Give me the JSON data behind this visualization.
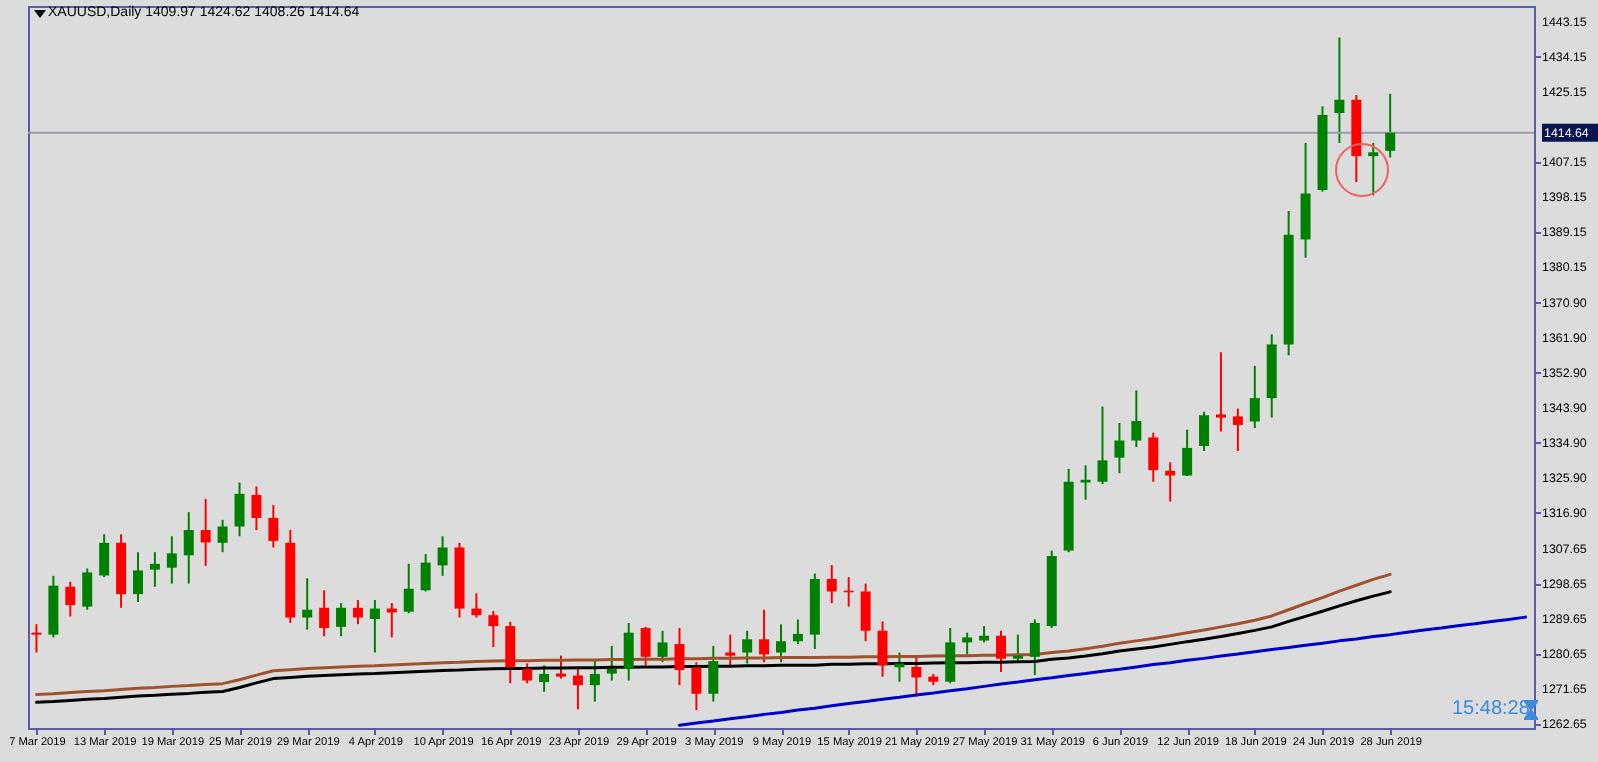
{
  "chart_data": {
    "type": "candlestick",
    "title": "XAUUSD,Daily  1409.97 1424.62 1408.26 1414.64",
    "categories": [
      "7 Mar 2019",
      null,
      null,
      null,
      "13 Mar 2019",
      null,
      null,
      null,
      "19 Mar 2019",
      null,
      null,
      null,
      "25 Mar 2019",
      null,
      null,
      null,
      "29 Mar 2019",
      null,
      null,
      null,
      "4 Apr 2019",
      null,
      null,
      null,
      "10 Apr 2019",
      null,
      null,
      null,
      "16 Apr 2019",
      null,
      null,
      null,
      "23 Apr 2019",
      null,
      null,
      null,
      "29 Apr 2019",
      null,
      null,
      null,
      "3 May 2019",
      null,
      null,
      null,
      "9 May 2019",
      null,
      null,
      null,
      "15 May 2019",
      null,
      null,
      null,
      "21 May 2019",
      null,
      null,
      null,
      "27 May 2019",
      null,
      null,
      null,
      "31 May 2019",
      null,
      null,
      null,
      "6 Jun 2019",
      null,
      null,
      null,
      "12 Jun 2019",
      null,
      null,
      null,
      "18 Jun 2019",
      null,
      null,
      null,
      "24 Jun 2019",
      null,
      null,
      null,
      "28 Jun 2019",
      null,
      null,
      null,
      null,
      null,
      null,
      null,
      null
    ],
    "ohlc": [
      [
        1286.1,
        1288.3,
        1281.0,
        1285.6
      ],
      [
        1285.6,
        1300.7,
        1284.9,
        1298.2
      ],
      [
        1297.9,
        1299.2,
        1290.3,
        1293.2
      ],
      [
        1292.8,
        1302.6,
        1292.0,
        1301.6
      ],
      [
        1300.8,
        1311.4,
        1300.4,
        1309.2
      ],
      [
        1309.2,
        1311.4,
        1292.5,
        1296.0
      ],
      [
        1296.0,
        1306.8,
        1294.0,
        1302.1
      ],
      [
        1302.3,
        1306.8,
        1297.9,
        1303.8
      ],
      [
        1302.8,
        1310.9,
        1298.7,
        1306.5
      ],
      [
        1306.0,
        1317.1,
        1298.7,
        1312.5
      ],
      [
        1312.5,
        1320.5,
        1303.3,
        1309.3
      ],
      [
        1309.2,
        1315.1,
        1306.8,
        1313.4
      ],
      [
        1313.4,
        1324.7,
        1310.9,
        1321.8
      ],
      [
        1321.5,
        1323.7,
        1312.5,
        1315.6
      ],
      [
        1315.6,
        1318.9,
        1308.0,
        1309.7
      ],
      [
        1309.2,
        1312.5,
        1288.6,
        1290.0
      ],
      [
        1290.0,
        1300.1,
        1286.9,
        1292.0
      ],
      [
        1292.5,
        1297.0,
        1285.2,
        1287.3
      ],
      [
        1287.6,
        1293.7,
        1285.2,
        1292.5
      ],
      [
        1292.5,
        1294.5,
        1288.3,
        1290.0
      ],
      [
        1289.6,
        1294.5,
        1281.0,
        1292.3
      ],
      [
        1292.3,
        1293.7,
        1284.9,
        1291.3
      ],
      [
        1291.5,
        1303.8,
        1291.1,
        1297.4
      ],
      [
        1297.0,
        1306.3,
        1296.7,
        1304.1
      ],
      [
        1303.4,
        1310.9,
        1300.7,
        1308.0
      ],
      [
        1308.0,
        1309.2,
        1290.0,
        1292.3
      ],
      [
        1292.3,
        1296.2,
        1290.0,
        1290.6
      ],
      [
        1290.6,
        1291.7,
        1282.4,
        1287.8
      ],
      [
        1287.8,
        1288.9,
        1273.1,
        1277.2
      ],
      [
        1276.8,
        1278.2,
        1273.1,
        1273.8
      ],
      [
        1273.4,
        1277.7,
        1270.9,
        1275.5
      ],
      [
        1275.6,
        1280.2,
        1274.3,
        1274.8
      ],
      [
        1275.1,
        1277.2,
        1266.4,
        1272.6
      ],
      [
        1272.6,
        1278.8,
        1268.4,
        1275.5
      ],
      [
        1275.6,
        1282.7,
        1273.8,
        1276.8
      ],
      [
        1276.8,
        1288.6,
        1273.8,
        1286.1
      ],
      [
        1287.3,
        1287.6,
        1277.7,
        1279.9
      ],
      [
        1279.9,
        1286.6,
        1278.5,
        1283.6
      ],
      [
        1283.2,
        1287.3,
        1272.6,
        1276.5
      ],
      [
        1277.2,
        1278.5,
        1266.2,
        1270.4
      ],
      [
        1270.4,
        1282.7,
        1268.4,
        1278.8
      ],
      [
        1281.0,
        1285.6,
        1277.2,
        1280.2
      ],
      [
        1281.0,
        1286.6,
        1278.2,
        1284.4
      ],
      [
        1284.4,
        1292.0,
        1278.5,
        1280.5
      ],
      [
        1281.0,
        1288.3,
        1278.5,
        1283.9
      ],
      [
        1283.9,
        1289.5,
        1283.2,
        1285.8
      ],
      [
        1285.6,
        1301.3,
        1281.9,
        1299.9
      ],
      [
        1299.9,
        1303.5,
        1293.7,
        1296.7
      ],
      [
        1296.9,
        1300.4,
        1292.8,
        1296.5
      ],
      [
        1296.7,
        1298.7,
        1283.9,
        1286.6
      ],
      [
        1286.6,
        1289.0,
        1274.8,
        1277.7
      ],
      [
        1277.2,
        1281.0,
        1273.5,
        1278.2
      ],
      [
        1277.3,
        1279.9,
        1269.7,
        1274.6
      ],
      [
        1274.8,
        1275.5,
        1272.6,
        1273.5
      ],
      [
        1273.5,
        1287.3,
        1273.1,
        1283.6
      ],
      [
        1283.6,
        1286.1,
        1280.5,
        1284.9
      ],
      [
        1284.1,
        1287.8,
        1283.6,
        1285.3
      ],
      [
        1285.3,
        1286.6,
        1276.0,
        1279.4
      ],
      [
        1279.4,
        1285.6,
        1278.9,
        1280.2
      ],
      [
        1279.9,
        1289.5,
        1275.2,
        1288.6
      ],
      [
        1287.8,
        1307.2,
        1287.3,
        1305.8
      ],
      [
        1307.2,
        1328.2,
        1306.8,
        1324.9
      ],
      [
        1324.7,
        1329.1,
        1320.3,
        1325.4
      ],
      [
        1324.9,
        1344.2,
        1324.3,
        1330.4
      ],
      [
        1331.1,
        1340.0,
        1327.1,
        1335.5
      ],
      [
        1335.5,
        1348.4,
        1333.8,
        1340.5
      ],
      [
        1336.3,
        1337.5,
        1324.9,
        1327.9
      ],
      [
        1327.7,
        1329.9,
        1319.8,
        1326.5
      ],
      [
        1326.5,
        1338.3,
        1326.4,
        1333.6
      ],
      [
        1334.1,
        1342.9,
        1332.8,
        1342.0
      ],
      [
        1342.2,
        1358.2,
        1337.8,
        1341.4
      ],
      [
        1341.7,
        1343.7,
        1332.8,
        1339.5
      ],
      [
        1340.4,
        1354.7,
        1338.7,
        1346.4
      ],
      [
        1346.4,
        1362.8,
        1341.4,
        1360.2
      ],
      [
        1360.2,
        1394.5,
        1357.4,
        1388.4
      ],
      [
        1387.2,
        1412.0,
        1382.5,
        1399.0
      ],
      [
        1399.9,
        1421.4,
        1399.5,
        1419.2
      ],
      [
        1419.7,
        1439.1,
        1412.0,
        1423.1
      ],
      [
        1423.1,
        1424.3,
        1401.9,
        1408.6
      ],
      [
        1408.6,
        1412.0,
        1398.5,
        1409.6
      ],
      [
        1409.97,
        1424.62,
        1408.26,
        1414.64
      ],
      null,
      null,
      null,
      null,
      null,
      null,
      null,
      null
    ],
    "colors": [
      "#ff0000",
      "#008000",
      "#ff0000",
      "#008000",
      "#008000",
      "#ff0000",
      "#008000",
      "#008000",
      "#008000",
      "#008000",
      "#ff0000",
      "#008000",
      "#008000",
      "#ff0000",
      "#ff0000",
      "#ff0000",
      "#008000",
      "#ff0000",
      "#008000",
      "#ff0000",
      "#008000",
      "#ff0000",
      "#008000",
      "#008000",
      "#008000",
      "#ff0000",
      "#ff0000",
      "#ff0000",
      "#ff0000",
      "#ff0000",
      "#008000",
      "#ff0000",
      "#ff0000",
      "#008000",
      "#008000",
      "#008000",
      "#ff0000",
      "#008000",
      "#ff0000",
      "#ff0000",
      "#008000",
      "#ff0000",
      "#008000",
      "#ff0000",
      "#008000",
      "#008000",
      "#008000",
      "#ff0000",
      "#ff0000",
      "#ff0000",
      "#ff0000",
      "#008000",
      "#ff0000",
      "#ff0000",
      "#008000",
      "#008000",
      "#008000",
      "#ff0000",
      "#008000",
      "#008000",
      "#008000",
      "#008000",
      "#008000",
      "#008000",
      "#008000",
      "#008000",
      "#ff0000",
      "#ff0000",
      "#008000",
      "#008000",
      "#ff0000",
      "#ff0000",
      "#008000",
      "#008000",
      "#008000",
      "#008000",
      "#008000",
      "#008000",
      "#ff0000",
      "#008000",
      "#008000",
      null,
      null,
      null,
      null,
      null,
      null,
      null,
      null
    ],
    "series": [
      {
        "type": "line",
        "color": "#a0522d",
        "values": [
          1270.2,
          1270.4,
          1270.7,
          1271.0,
          1271.2,
          1271.5,
          1271.8,
          1272.0,
          1272.3,
          1272.5,
          1272.8,
          1273.0,
          1274.0,
          1275.2,
          1276.3,
          1276.6,
          1276.9,
          1277.1,
          1277.3,
          1277.5,
          1277.6,
          1277.8,
          1278.0,
          1278.2,
          1278.4,
          1278.5,
          1278.7,
          1278.8,
          1278.9,
          1278.9,
          1279.0,
          1279.0,
          1279.1,
          1279.1,
          1279.2,
          1279.2,
          1279.3,
          1279.3,
          1279.4,
          1279.4,
          1279.5,
          1279.5,
          1279.6,
          1279.6,
          1279.7,
          1279.7,
          1279.7,
          1279.8,
          1279.8,
          1279.9,
          1279.9,
          1280.0,
          1280.0,
          1280.1,
          1280.2,
          1280.2,
          1280.3,
          1280.3,
          1280.4,
          1280.5,
          1281.0,
          1281.4,
          1282.0,
          1282.6,
          1283.4,
          1284.0,
          1284.6,
          1285.3,
          1286.1,
          1286.8,
          1287.6,
          1288.4,
          1289.3,
          1290.4,
          1292.0,
          1293.6,
          1295.1,
          1296.8,
          1298.3,
          1299.8,
          1301.1,
          null,
          null,
          null,
          null,
          null,
          null,
          null,
          null
        ]
      },
      {
        "type": "line",
        "color": "#000000",
        "values": [
          1268.2,
          1268.4,
          1268.7,
          1269.0,
          1269.2,
          1269.5,
          1269.8,
          1270.0,
          1270.3,
          1270.5,
          1270.8,
          1271.0,
          1272.0,
          1273.2,
          1274.3,
          1274.6,
          1274.9,
          1275.1,
          1275.3,
          1275.5,
          1275.6,
          1275.8,
          1276.0,
          1276.2,
          1276.4,
          1276.5,
          1276.7,
          1276.8,
          1276.9,
          1276.9,
          1277.0,
          1277.0,
          1277.1,
          1277.1,
          1277.2,
          1277.2,
          1277.3,
          1277.3,
          1277.4,
          1277.4,
          1277.5,
          1277.5,
          1277.6,
          1277.6,
          1277.7,
          1277.7,
          1277.7,
          1278.0,
          1278.0,
          1278.1,
          1278.1,
          1278.2,
          1278.2,
          1278.3,
          1278.4,
          1278.4,
          1278.5,
          1278.5,
          1278.6,
          1278.7,
          1279.3,
          1279.6,
          1280.1,
          1280.7,
          1281.4,
          1281.9,
          1282.4,
          1283.1,
          1283.8,
          1284.4,
          1285.1,
          1285.9,
          1286.7,
          1287.6,
          1289.0,
          1290.3,
          1291.6,
          1293.0,
          1294.3,
          1295.5,
          1296.6,
          null,
          null,
          null,
          null,
          null,
          null,
          null,
          null
        ]
      },
      {
        "type": "line",
        "color": "#0000cd",
        "values": [
          null,
          null,
          null,
          null,
          null,
          null,
          null,
          null,
          null,
          null,
          null,
          null,
          null,
          null,
          null,
          null,
          null,
          null,
          null,
          null,
          null,
          null,
          null,
          null,
          null,
          null,
          null,
          null,
          null,
          null,
          null,
          null,
          null,
          null,
          null,
          null,
          null,
          null,
          1262.3,
          1262.9,
          1263.4,
          1264.0,
          1264.5,
          1265.1,
          1265.6,
          1266.2,
          1266.7,
          1267.3,
          1267.9,
          1268.4,
          1269.0,
          1269.5,
          1270.1,
          1270.6,
          1271.2,
          1271.7,
          1272.3,
          1272.9,
          1273.4,
          1274.0,
          1274.5,
          1275.1,
          1275.6,
          1276.2,
          1276.7,
          1277.3,
          1277.9,
          1278.4,
          1279.0,
          1279.5,
          1280.1,
          1280.6,
          1281.2,
          1281.8,
          1282.3,
          1282.9,
          1283.4,
          1284.0,
          1284.5,
          1285.1,
          1285.6,
          1286.2,
          1286.8,
          1287.3,
          1287.9,
          1288.4,
          1289.0,
          1289.5,
          1290.1
        ]
      }
    ],
    "ylim": [
      1261.6,
      1447.2
    ],
    "yticks": [
      {
        "value": 1443.15,
        "label": "1443.15"
      },
      {
        "value": 1434.15,
        "label": "1434.15"
      },
      {
        "value": 1425.15,
        "label": "1425.15"
      },
      {
        "value": 1407.15,
        "label": "1407.15"
      },
      {
        "value": 1398.15,
        "label": "1398.15"
      },
      {
        "value": 1389.15,
        "label": "1389.15"
      },
      {
        "value": 1380.15,
        "label": "1380.15"
      },
      {
        "value": 1370.9,
        "label": "1370.90"
      },
      {
        "value": 1361.9,
        "label": "1361.90"
      },
      {
        "value": 1352.9,
        "label": "1352.90"
      },
      {
        "value": 1343.9,
        "label": "1343.90"
      },
      {
        "value": 1334.9,
        "label": "1334.90"
      },
      {
        "value": 1325.9,
        "label": "1325.90"
      },
      {
        "value": 1316.9,
        "label": "1316.90"
      },
      {
        "value": 1307.65,
        "label": "1307.65"
      },
      {
        "value": 1298.65,
        "label": "1298.65"
      },
      {
        "value": 1289.65,
        "label": "1289.65"
      },
      {
        "value": 1280.65,
        "label": "1280.65"
      },
      {
        "value": 1271.65,
        "label": "1271.65"
      },
      {
        "value": 1262.65,
        "label": "1262.65"
      }
    ],
    "ref_lines": [
      {
        "axis": "y",
        "value": 1414.64,
        "label": "1414.64",
        "color": "#9aa0a8"
      }
    ],
    "annotations": [
      "15:48:28"
    ]
  }
}
